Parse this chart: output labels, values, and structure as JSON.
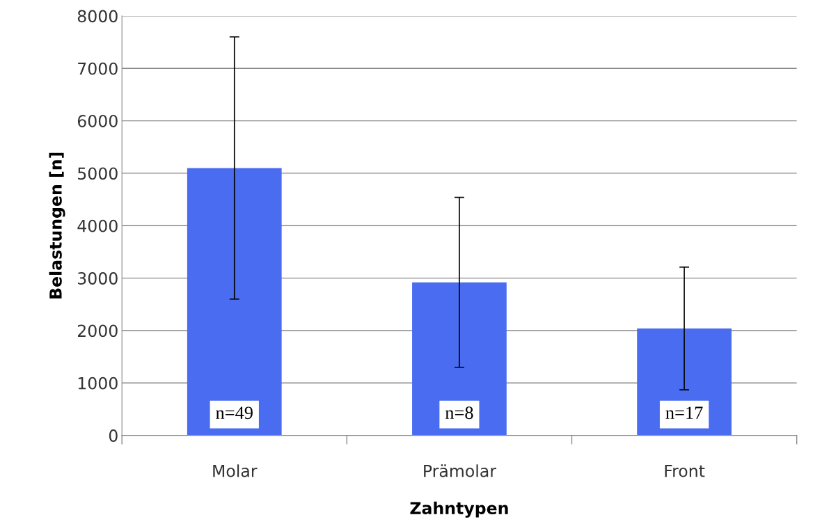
{
  "chart_data": {
    "type": "bar",
    "xlabel": "Zahntypen",
    "ylabel": "Belastungen [n]",
    "categories": [
      "Molar",
      "Prämolar",
      "Front"
    ],
    "values": [
      5100,
      2920,
      2040
    ],
    "errors": [
      2500,
      1620,
      1170
    ],
    "color": "#4a6cf0",
    "ylim": [
      0,
      8000
    ],
    "yticks": [
      0,
      1000,
      2000,
      3000,
      4000,
      5000,
      6000,
      7000,
      8000
    ],
    "grid": "y",
    "legend": false,
    "annotations": [
      "n=49",
      "n=8",
      "n=17"
    ]
  }
}
